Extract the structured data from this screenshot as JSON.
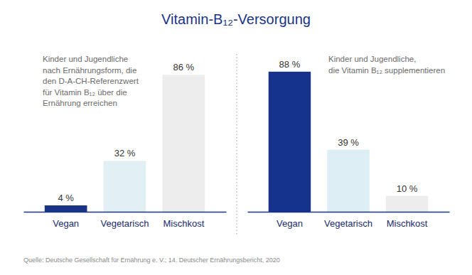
{
  "title": "Vitamin-B₁₂-Versorgung",
  "source": "Quelle: Deutsche Gesellschaft für Ernährung e. V.; 14. Deutscher Ernährungsbericht, 2020",
  "chart_data": [
    {
      "type": "bar",
      "subtitle": [
        "Kinder und Jugendliche",
        "nach Ernährungsform, die",
        "den D-A-CH-Referenzwert",
        "für Vitamin B₁₂ über die",
        "Ernährung erreichen"
      ],
      "categories": [
        "Vegan",
        "Vegetarisch",
        "Mischkost"
      ],
      "values": [
        4,
        32,
        86
      ],
      "value_labels": [
        "4 %",
        "32 %",
        "86 %"
      ],
      "colors": [
        "#1a3386",
        "#e2f0f5",
        "#ededed"
      ],
      "ylim": [
        0,
        100
      ],
      "data_labels": true,
      "tick_labels": "x"
    },
    {
      "type": "bar",
      "subtitle": [
        "Kinder und Jugendliche,",
        "die Vitamin B₁₂ supplementieren"
      ],
      "categories": [
        "Vegan",
        "Vegetarisch",
        "Mischkost"
      ],
      "values": [
        88,
        39,
        10
      ],
      "value_labels": [
        "88 %",
        "39 %",
        "10 %"
      ],
      "colors": [
        "#15338c",
        "#ddeef4",
        "#ededed"
      ],
      "ylim": [
        0,
        100
      ],
      "data_labels": true,
      "tick_labels": "x"
    }
  ]
}
